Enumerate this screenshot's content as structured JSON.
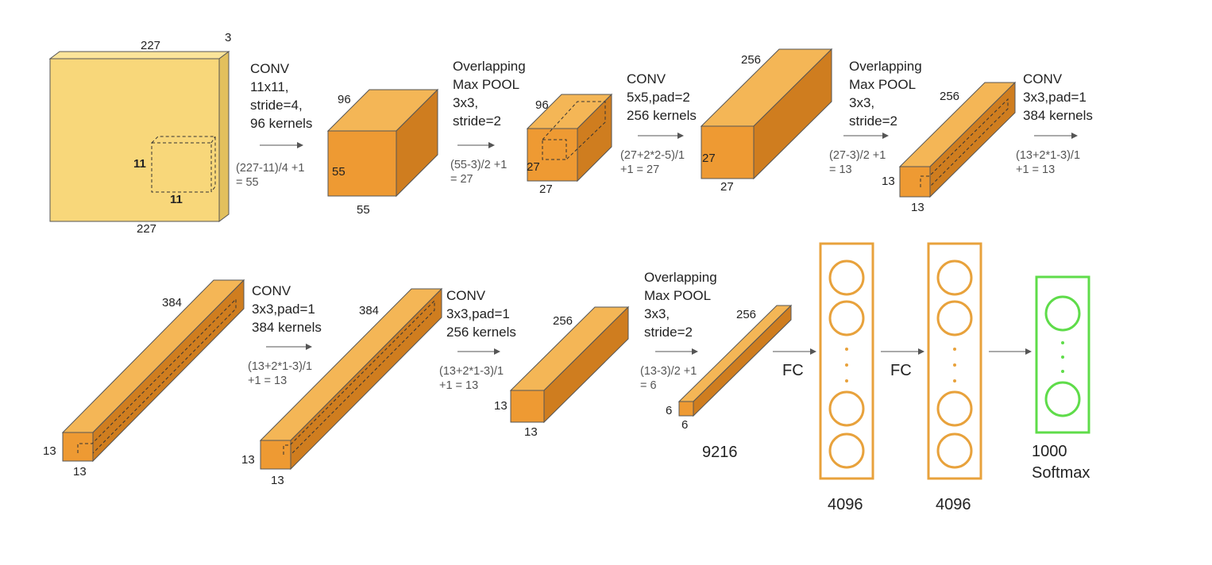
{
  "colors": {
    "input_front": "#f8d77a",
    "input_top": "#fbe49a",
    "input_side": "#e2c05d",
    "block_front": "#ee9a33",
    "block_top": "#f4b656",
    "block_side": "#cf7d1f",
    "fc_stroke": "#e8a23c",
    "softmax_stroke": "#5fdc4a",
    "arrow": "#555555"
  },
  "input": {
    "width": "227",
    "height": "227",
    "depth": "3",
    "kernel_w": "11",
    "kernel_h": "11"
  },
  "conv1": {
    "op": [
      "CONV",
      "11x11,",
      "stride=4,",
      "96 kernels"
    ],
    "calc": [
      "(227-11)/4 +1",
      "= 55"
    ],
    "depth": "96",
    "height": "55",
    "width": "55"
  },
  "pool1": {
    "op": [
      "Overlapping",
      "Max POOL",
      "3x3,",
      "stride=2"
    ],
    "calc": [
      "(55-3)/2 +1",
      "= 27"
    ],
    "depth": "96",
    "height": "27",
    "width": "27"
  },
  "conv2": {
    "op": [
      "CONV",
      "5x5,pad=2",
      "256 kernels"
    ],
    "calc": [
      "(27+2*2-5)/1",
      "+1  = 27"
    ],
    "depth": "256",
    "height": "27",
    "width": "27"
  },
  "pool2": {
    "op": [
      "Overlapping",
      "Max POOL",
      "3x3,",
      "stride=2"
    ],
    "calc": [
      "(27-3)/2 +1",
      "= 13"
    ],
    "depth": "256",
    "height": "13",
    "width": "13"
  },
  "conv3": {
    "op": [
      "CONV",
      "3x3,pad=1",
      "384 kernels"
    ],
    "calc": [
      "(13+2*1-3)/1",
      "+1  = 13"
    ],
    "depth": "384",
    "height": "13",
    "width": "13"
  },
  "conv4": {
    "op": [
      "CONV",
      "3x3,pad=1",
      "384 kernels"
    ],
    "calc": [
      "(13+2*1-3)/1",
      "+1  = 13"
    ],
    "depth": "384",
    "height": "13",
    "width": "13"
  },
  "conv5": {
    "op": [
      "CONV",
      "3x3,pad=1",
      "256 kernels"
    ],
    "calc": [
      "(13+2*1-3)/1",
      "+1  = 13"
    ],
    "depth": "256",
    "height": "13",
    "width": "13"
  },
  "pool3": {
    "op": [
      "Overlapping",
      "Max POOL",
      "3x3,",
      "stride=2"
    ],
    "calc": [
      "(13-3)/2 +1",
      "= 6"
    ],
    "depth": "256",
    "height": "6",
    "width": "6",
    "flatten": "9216"
  },
  "fc1": {
    "arrow_label": "FC",
    "size": "4096"
  },
  "fc2": {
    "arrow_label": "FC",
    "size": "4096"
  },
  "output": {
    "lines": [
      "1000",
      "Softmax"
    ]
  }
}
